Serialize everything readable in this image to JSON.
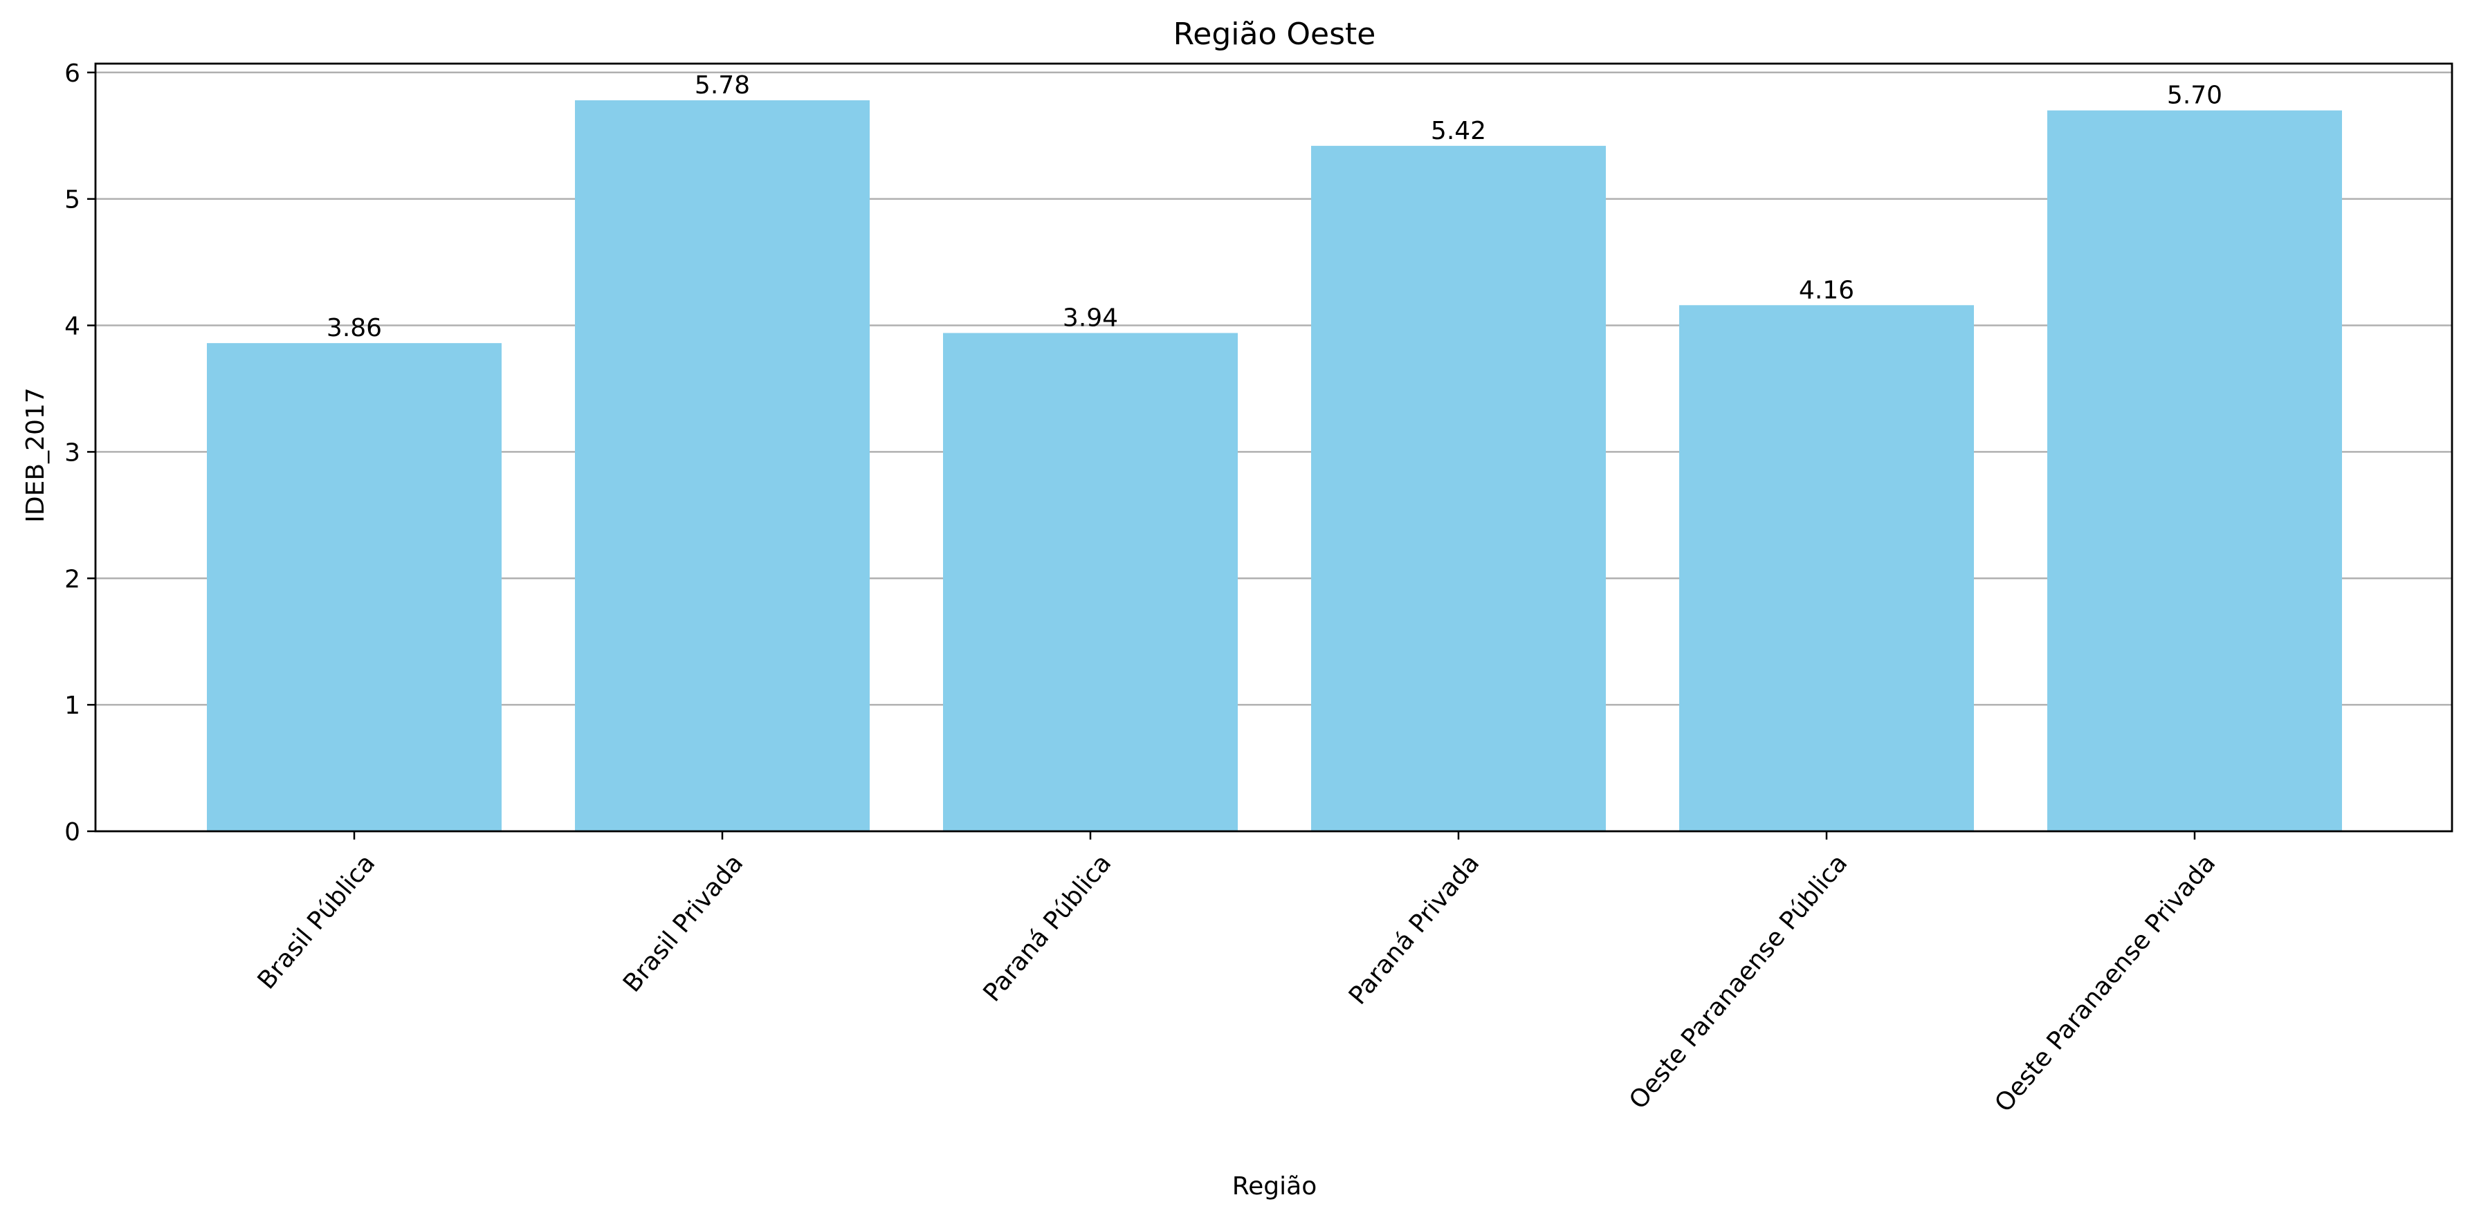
{
  "chart_data": {
    "type": "bar",
    "title": "Região Oeste",
    "xlabel": "Região",
    "ylabel": "IDEB_2017",
    "categories": [
      "Brasil Pública",
      "Brasil Privada",
      "Paraná Pública",
      "Paraná Privada",
      "Oeste Paranaense Pública",
      "Oeste Paranaense Privada"
    ],
    "values": [
      3.86,
      5.78,
      3.94,
      5.42,
      4.16,
      5.7
    ],
    "value_labels": [
      "3.86",
      "5.78",
      "3.94",
      "5.42",
      "4.16",
      "5.70"
    ],
    "ylim": [
      0,
      6.07
    ],
    "yticks": [
      0,
      1,
      2,
      3,
      4,
      5,
      6
    ],
    "grid": "y",
    "legend": "none",
    "bar_color": "#87CEEB",
    "grid_color": "#b0b0b0",
    "tick_label_rotation": -50
  }
}
